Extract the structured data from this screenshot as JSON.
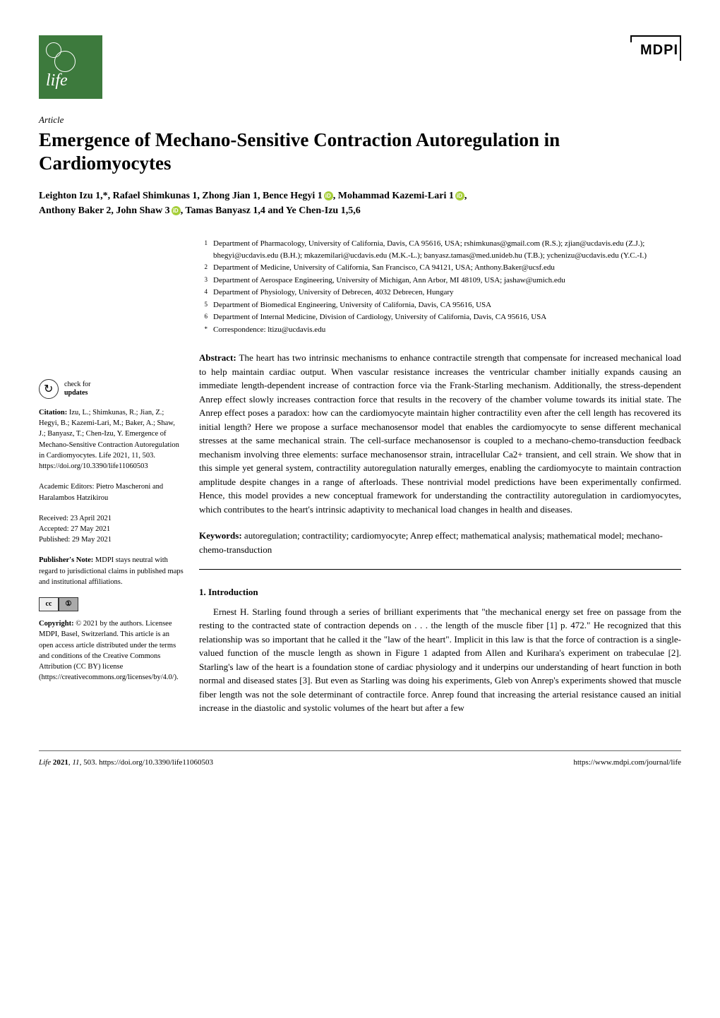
{
  "header": {
    "journal_logo_text": "life",
    "publisher_logo": "MDPI"
  },
  "article_type": "Article",
  "title": "Emergence of Mechano-Sensitive Contraction Autoregulation in Cardiomyocytes",
  "authors_line1": "Leighton Izu 1,*, Rafael Shimkunas 1, Zhong Jian 1, Bence Hegyi 1",
  "authors_line1b": ", Mohammad Kazemi-Lari 1",
  "authors_line1c": ",",
  "authors_line2": "Anthony Baker 2, John Shaw 3",
  "authors_line2b": ", Tamas Banyasz 1,4 and Ye Chen-Izu 1,5,6",
  "affiliations": [
    {
      "num": "1",
      "text": "Department of Pharmacology, University of California, Davis, CA 95616, USA; rshimkunas@gmail.com (R.S.); zjian@ucdavis.edu (Z.J.); bhegyi@ucdavis.edu (B.H.); mkazemilari@ucdavis.edu (M.K.-L.); banyasz.tamas@med.unideb.hu (T.B.); ychenizu@ucdavis.edu (Y.C.-I.)"
    },
    {
      "num": "2",
      "text": "Department of Medicine, University of California, San Francisco, CA 94121, USA; Anthony.Baker@ucsf.edu"
    },
    {
      "num": "3",
      "text": "Department of Aerospace Engineering, University of Michigan, Ann Arbor, MI 48109, USA; jashaw@umich.edu"
    },
    {
      "num": "4",
      "text": "Department of Physiology, University of Debrecen, 4032 Debrecen, Hungary"
    },
    {
      "num": "5",
      "text": "Department of Biomedical Engineering, University of California, Davis, CA 95616, USA"
    },
    {
      "num": "6",
      "text": "Department of Internal Medicine, Division of Cardiology, University of California, Davis, CA 95616, USA"
    },
    {
      "num": "*",
      "text": "Correspondence: ltizu@ucdavis.edu"
    }
  ],
  "abstract_label": "Abstract:",
  "abstract_text": "The heart has two intrinsic mechanisms to enhance contractile strength that compensate for increased mechanical load to help maintain cardiac output. When vascular resistance increases the ventricular chamber initially expands causing an immediate length-dependent increase of contraction force via the Frank-Starling mechanism. Additionally, the stress-dependent Anrep effect slowly increases contraction force that results in the recovery of the chamber volume towards its initial state. The Anrep effect poses a paradox: how can the cardiomyocyte maintain higher contractility even after the cell length has recovered its initial length? Here we propose a surface mechanosensor model that enables the cardiomyocyte to sense different mechanical stresses at the same mechanical strain. The cell-surface mechanosensor is coupled to a mechano-chemo-transduction feedback mechanism involving three elements: surface mechanosensor strain, intracellular Ca2+ transient, and cell strain. We show that in this simple yet general system, contractility autoregulation naturally emerges, enabling the cardiomyocyte to maintain contraction amplitude despite changes in a range of afterloads. These nontrivial model predictions have been experimentally confirmed. Hence, this model provides a new conceptual framework for understanding the contractility autoregulation in cardiomyocytes, which contributes to the heart's intrinsic adaptivity to mechanical load changes in health and diseases.",
  "keywords_label": "Keywords:",
  "keywords_text": "autoregulation; contractility; cardiomyocyte; Anrep effect; mathematical analysis; mathematical model; mechano-chemo-transduction",
  "section1_heading": "1. Introduction",
  "section1_body": "Ernest H. Starling found through a series of brilliant experiments that \"the mechanical energy set free on passage from the resting to the contracted state of contraction depends on . . . the length of the muscle fiber [1] p. 472.\" He recognized that this relationship was so important that he called it the \"law of the heart\". Implicit in this law is that the force of contraction is a single-valued function of the muscle length as shown in Figure 1 adapted from Allen and Kurihara's experiment on trabeculae [2]. Starling's law of the heart is a foundation stone of cardiac physiology and it underpins our understanding of heart function in both normal and diseased states [3]. But even as Starling was doing his experiments, Gleb von Anrep's experiments showed that muscle fiber length was not the sole determinant of contractile force. Anrep found that increasing the arterial resistance caused an initial increase in the diastolic and systolic volumes of the heart but after a few",
  "sidebar": {
    "check_label1": "check for",
    "check_label2": "updates",
    "citation_label": "Citation:",
    "citation_text": "Izu, L.; Shimkunas, R.; Jian, Z.; Hegyi, B.; Kazemi-Lari, M.; Baker, A.; Shaw, J.; Banyasz, T.; Chen-Izu, Y. Emergence of Mechano-Sensitive Contraction Autoregulation in Cardiomyocytes. Life 2021, 11, 503. https://doi.org/10.3390/life11060503",
    "editors_label": "Academic Editors:",
    "editors_text": "Pietro Mascheroni and Haralambos Hatzikirou",
    "received_label": "Received:",
    "received_date": "23 April 2021",
    "accepted_label": "Accepted:",
    "accepted_date": "27 May 2021",
    "published_label": "Published:",
    "published_date": "29 May 2021",
    "note_label": "Publisher's Note:",
    "note_text": "MDPI stays neutral with regard to jurisdictional claims in published maps and institutional affiliations.",
    "copyright_label": "Copyright:",
    "copyright_text": "© 2021 by the authors. Licensee MDPI, Basel, Switzerland. This article is an open access article distributed under the terms and conditions of the Creative Commons Attribution (CC BY) license (https://creativecommons.org/licenses/by/4.0/)."
  },
  "footer": {
    "journal": "Life",
    "year": "2021",
    "volume": "11",
    "article": "503.",
    "doi": "https://doi.org/10.3390/life11060503",
    "url": "https://www.mdpi.com/journal/life"
  }
}
